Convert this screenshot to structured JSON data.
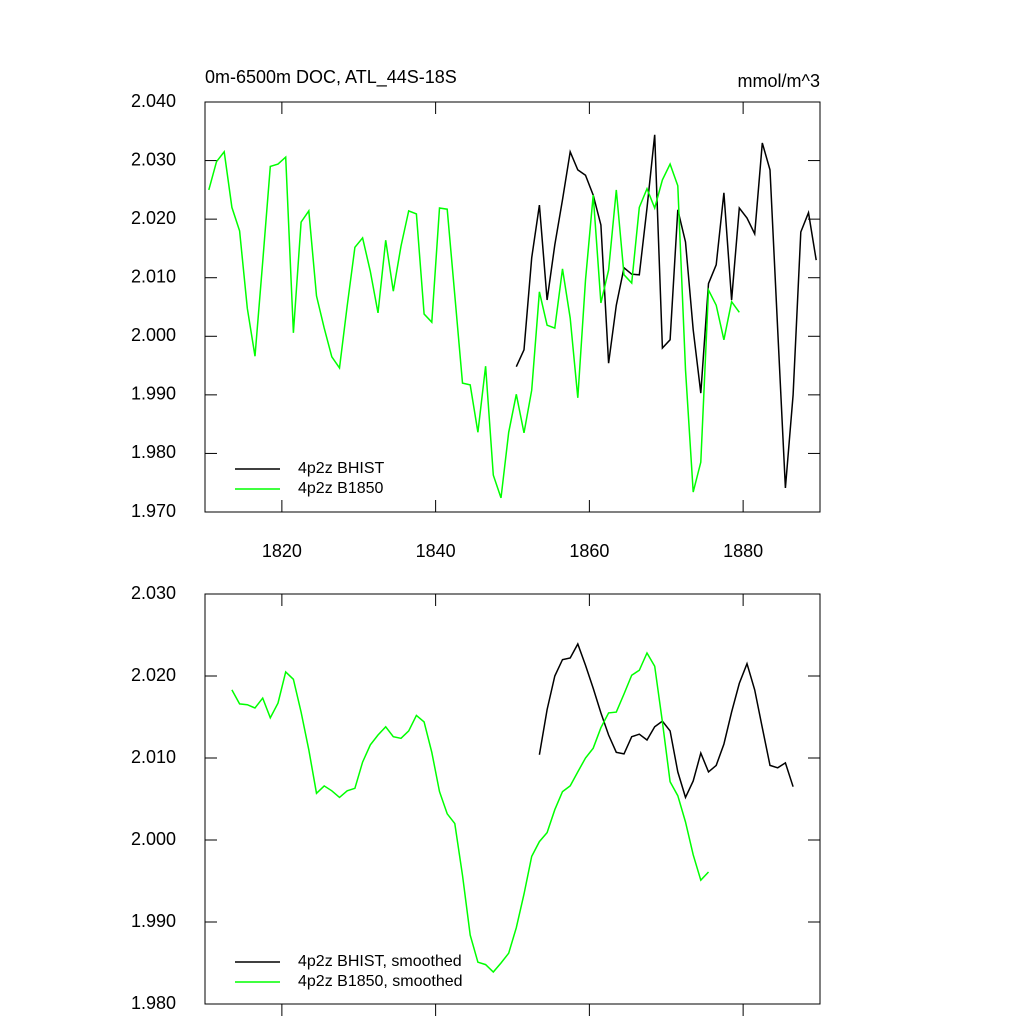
{
  "chart_data": [
    {
      "type": "line",
      "title": "0m-6500m DOC, ATL_44S-18S",
      "units": "mmol/m^3",
      "xlim": [
        1810,
        1890
      ],
      "xticks": [
        1820,
        1840,
        1860,
        1880
      ],
      "ylim": [
        1.97,
        2.04
      ],
      "yticks": [
        {
          "value": 1.97,
          "label": "1.970"
        },
        {
          "value": 1.98,
          "label": "1.980"
        },
        {
          "value": 1.99,
          "label": "1.990"
        },
        {
          "value": 2.0,
          "label": "2.000"
        },
        {
          "value": 2.01,
          "label": "2.010"
        },
        {
          "value": 2.02,
          "label": "2.020"
        },
        {
          "value": 2.03,
          "label": "2.030"
        },
        {
          "value": 2.04,
          "label": "2.040"
        }
      ],
      "series": [
        {
          "name": "4p2z BHIST",
          "color": "#000000",
          "x": [
            1850.5,
            1851.5,
            1852.5,
            1853.5,
            1854.5,
            1855.5,
            1856.5,
            1857.5,
            1858.5,
            1859.5,
            1860.5,
            1861.5,
            1862.5,
            1863.5,
            1864.5,
            1865.5,
            1866.5,
            1867.5,
            1868.5,
            1869.5,
            1870.5,
            1871.5,
            1872.5,
            1873.5,
            1874.5,
            1875.5,
            1876.5,
            1877.5,
            1878.5,
            1879.5,
            1880.5,
            1881.5,
            1882.5,
            1883.5,
            1884.5,
            1885.5,
            1886.5,
            1887.5,
            1888.5,
            1889.5
          ],
          "values": [
            1.9948,
            1.9977,
            2.0134,
            2.0224,
            2.0062,
            2.0156,
            2.0233,
            2.0315,
            2.0284,
            2.0275,
            2.0241,
            2.019,
            1.9954,
            2.0053,
            2.0117,
            2.0106,
            2.0105,
            2.0219,
            2.0344,
            1.998,
            1.9994,
            2.0216,
            2.0161,
            2.0011,
            1.9903,
            2.009,
            2.0122,
            2.0245,
            2.0062,
            2.0219,
            2.0202,
            2.0175,
            2.033,
            2.0284,
            2.0011,
            1.9741,
            1.99,
            2.0178,
            2.0211,
            2.013
          ]
        },
        {
          "name": "4p2z B1850",
          "color": "#00ff00",
          "x": [
            1810.5,
            1811.5,
            1812.5,
            1813.5,
            1814.5,
            1815.5,
            1816.5,
            1817.5,
            1818.5,
            1819.5,
            1820.5,
            1821.5,
            1822.5,
            1823.5,
            1824.5,
            1825.5,
            1826.5,
            1827.5,
            1828.5,
            1829.5,
            1830.5,
            1831.5,
            1832.5,
            1833.5,
            1834.5,
            1835.5,
            1836.5,
            1837.5,
            1838.5,
            1839.5,
            1840.5,
            1841.5,
            1842.5,
            1843.5,
            1844.5,
            1845.5,
            1846.5,
            1847.5,
            1848.5,
            1849.5,
            1850.5,
            1851.5,
            1852.5,
            1853.5,
            1854.5,
            1855.5,
            1856.5,
            1857.5,
            1858.5,
            1859.5,
            1860.5,
            1861.5,
            1862.5,
            1863.5,
            1864.5,
            1865.5,
            1866.5,
            1867.5,
            1868.5,
            1869.5,
            1870.5,
            1871.5,
            1872.5,
            1873.5,
            1874.5,
            1875.5,
            1876.5,
            1877.5,
            1878.5,
            1879.5
          ],
          "values": [
            2.025,
            2.0298,
            2.0315,
            2.022,
            2.018,
            2.0048,
            1.9966,
            2.0127,
            2.029,
            2.0294,
            2.0306,
            2.0006,
            2.0195,
            2.0214,
            2.0069,
            2.0014,
            1.9965,
            1.9946,
            2.0052,
            2.0152,
            2.0168,
            2.0111,
            2.004,
            2.0164,
            2.0077,
            2.0154,
            2.0214,
            2.0209,
            2.0038,
            2.0024,
            2.0219,
            2.0217,
            2.007,
            1.992,
            1.9917,
            1.9836,
            1.9949,
            1.9763,
            1.9724,
            1.9836,
            1.9901,
            1.9835,
            1.9908,
            2.0076,
            2.0019,
            2.0014,
            2.0115,
            2.0031,
            1.9895,
            2.0096,
            2.0241,
            2.0057,
            2.0113,
            2.025,
            2.0105,
            2.0091,
            2.022,
            2.0252,
            2.0219,
            2.0267,
            2.0294,
            2.0257,
            1.9943,
            1.9734,
            1.9785,
            2.0079,
            2.0053,
            1.9994,
            2.0059,
            2.0041
          ]
        }
      ]
    },
    {
      "type": "line",
      "xlim": [
        1810,
        1890
      ],
      "xticks": [
        1820,
        1840,
        1860,
        1880
      ],
      "ylim": [
        1.98,
        2.03
      ],
      "yticks": [
        {
          "value": 1.98,
          "label": "1.980"
        },
        {
          "value": 1.99,
          "label": "1.990"
        },
        {
          "value": 2.0,
          "label": "2.000"
        },
        {
          "value": 2.01,
          "label": "2.010"
        },
        {
          "value": 2.02,
          "label": "2.020"
        },
        {
          "value": 2.03,
          "label": "2.030"
        }
      ],
      "series": [
        {
          "name": "4p2z BHIST, smoothed",
          "color": "#000000",
          "x": [
            1853.5,
            1854.5,
            1855.5,
            1856.5,
            1857.5,
            1858.5,
            1859.5,
            1860.5,
            1861.5,
            1862.5,
            1863.5,
            1864.5,
            1865.5,
            1866.5,
            1867.5,
            1868.5,
            1869.5,
            1870.5,
            1871.5,
            1872.5,
            1873.5,
            1874.5,
            1875.5,
            1876.5,
            1877.5,
            1878.5,
            1879.5,
            1880.5,
            1881.5,
            1882.5,
            1883.5,
            1884.5,
            1885.5,
            1886.5
          ],
          "values": [
            2.0104,
            2.0159,
            2.02,
            2.022,
            2.0222,
            2.0239,
            2.0213,
            2.0185,
            2.0155,
            2.0128,
            2.0107,
            2.0105,
            2.0126,
            2.0129,
            2.0122,
            2.0138,
            2.0145,
            2.0133,
            2.0083,
            2.0052,
            2.0072,
            2.0106,
            2.0083,
            2.0091,
            2.0117,
            2.0156,
            2.0191,
            2.0215,
            2.0183,
            2.0137,
            2.0091,
            2.0088,
            2.0094,
            2.0065
          ]
        },
        {
          "name": "4p2z B1850, smoothed",
          "color": "#00ff00",
          "x": [
            1813.5,
            1814.5,
            1815.5,
            1816.5,
            1817.5,
            1818.5,
            1819.5,
            1820.5,
            1821.5,
            1822.5,
            1823.5,
            1824.5,
            1825.5,
            1826.5,
            1827.5,
            1828.5,
            1829.5,
            1830.5,
            1831.5,
            1832.5,
            1833.5,
            1834.5,
            1835.5,
            1836.5,
            1837.5,
            1838.5,
            1839.5,
            1840.5,
            1841.5,
            1842.5,
            1843.5,
            1844.5,
            1845.5,
            1846.5,
            1847.5,
            1848.5,
            1849.5,
            1850.5,
            1851.5,
            1852.5,
            1853.5,
            1854.5,
            1855.5,
            1856.5,
            1857.5,
            1858.5,
            1859.5,
            1860.5,
            1861.5,
            1862.5,
            1863.5,
            1864.5,
            1865.5,
            1866.5,
            1867.5,
            1868.5,
            1869.5,
            1870.5,
            1871.5,
            1872.5,
            1873.5,
            1874.5,
            1875.5
          ],
          "values": [
            2.0183,
            2.0166,
            2.0165,
            2.0161,
            2.0173,
            2.0149,
            2.0167,
            2.0205,
            2.0196,
            2.0156,
            2.011,
            2.0057,
            2.0066,
            2.006,
            2.0052,
            2.006,
            2.0063,
            2.0095,
            2.0116,
            2.0128,
            2.0138,
            2.0126,
            2.0124,
            2.0133,
            2.0152,
            2.0144,
            2.0107,
            2.0059,
            2.0032,
            2.002,
            1.9957,
            1.9884,
            1.9851,
            1.9848,
            1.9839,
            1.985,
            1.9862,
            1.9893,
            1.9934,
            1.998,
            1.9998,
            2.0009,
            2.0037,
            2.0059,
            2.0066,
            2.0083,
            2.01,
            2.0112,
            2.0137,
            2.0155,
            2.0156,
            2.0178,
            2.0201,
            2.0207,
            2.0228,
            2.0212,
            2.0144,
            2.0071,
            2.0054,
            2.0022,
            1.9982,
            1.9951,
            1.9961
          ]
        }
      ]
    }
  ]
}
